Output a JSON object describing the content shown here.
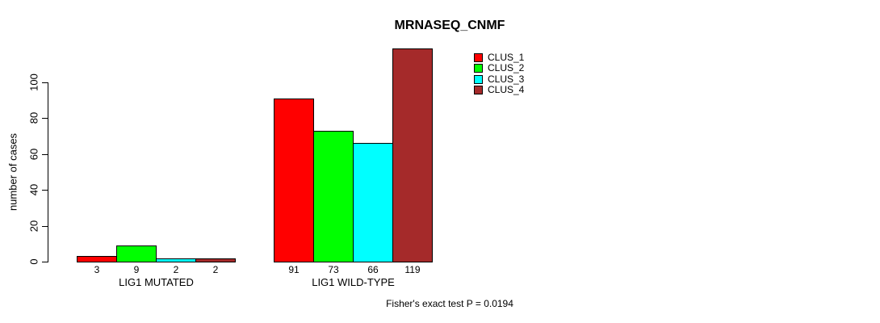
{
  "chart_data": {
    "type": "bar",
    "title": "MRNASEQ_CNMF",
    "ylabel": "number of cases",
    "xlabel": "",
    "footer": "Fisher's exact test P = 0.0194",
    "yticks": [
      0,
      20,
      40,
      60,
      80,
      100
    ],
    "ylim": [
      0,
      125
    ],
    "grid": false,
    "legend_position": "top-right",
    "categories": [
      "LIG1 MUTATED",
      "LIG1 WILD-TYPE"
    ],
    "series": [
      {
        "name": "CLUS_1",
        "color": "#FF0000",
        "values": [
          3,
          91
        ]
      },
      {
        "name": "CLUS_2",
        "color": "#00FF00",
        "values": [
          9,
          73
        ]
      },
      {
        "name": "CLUS_3",
        "color": "#00FFFF",
        "values": [
          2,
          66
        ]
      },
      {
        "name": "CLUS_4",
        "color": "#A52A2A",
        "values": [
          2,
          119
        ]
      }
    ],
    "bar_value_labels": {
      "LIG1 MUTATED": [
        3,
        9,
        2,
        2
      ],
      "LIG1 WILD-TYPE": [
        91,
        73,
        66,
        119
      ]
    }
  }
}
